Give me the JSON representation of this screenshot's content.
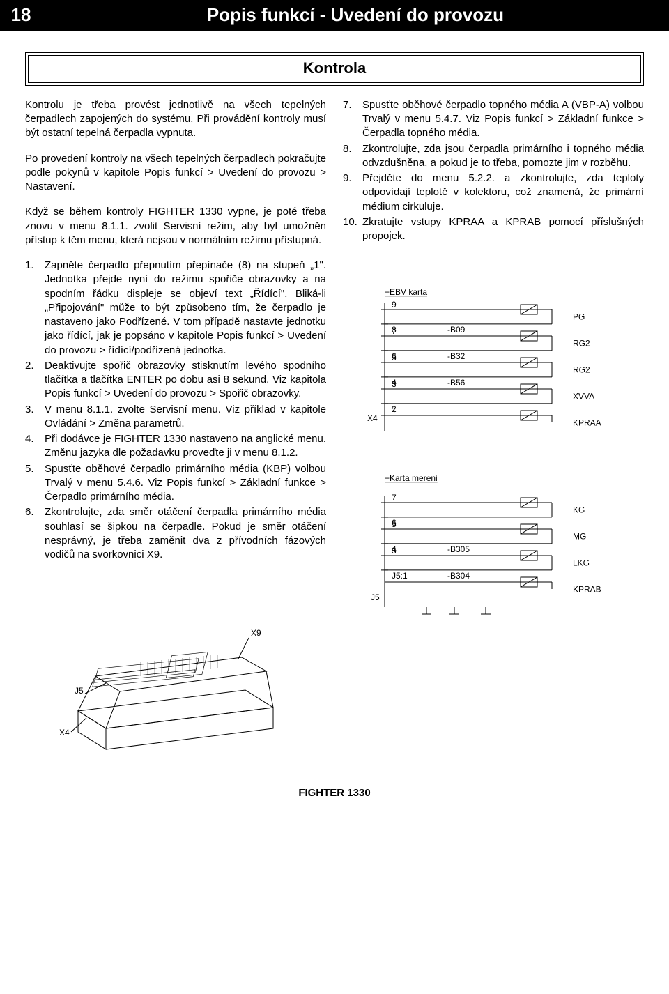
{
  "page_number": "18",
  "page_title": "Popis funkcí - Uvedení do provozu",
  "section_title": "Kontrola",
  "intro_p1": "Kontrolu je třeba provést jednotlivě na všech tepelných čerpadlech zapojených do systému. Při provádění kontroly musí být ostatní tepelná čerpadla vypnuta.",
  "intro_p2": "Po provedení kontroly na všech tepelných čerpadlech pokračujte podle pokynů v kapitole Popis funkcí > Uvedení do provozu > Nastavení.",
  "intro_p3": "Když se během kontroly FIGHTER 1330 vypne, je poté třeba znovu v menu 8.1.1. zvolit Servisní režim, aby byl umožněn přístup k těm menu, která nejsou v normálním režimu přístupná.",
  "left_list": [
    {
      "n": "1.",
      "t": "Zapněte čerpadlo přepnutím přepínače (8) na stupeň „1\". Jednotka přejde nyní do režimu spořiče obrazovky a na spodním řádku displeje se objeví text „Řídící\". Bliká-li „Připojování\" může to být způsobeno tím, že čerpadlo je nastaveno jako Podřízené. V tom případě nastavte jednotku jako řídící, jak je popsáno v kapitole Popis funkcí > Uvedení do provozu > řídící/podřízená jednotka."
    },
    {
      "n": "2.",
      "t": "Deaktivujte spořič obrazovky stisknutím levého spodního tlačítka a tlačítka ENTER po dobu asi 8 sekund. Viz kapitola Popis funkcí > Uvedení do provozu > Spořič obrazovky."
    },
    {
      "n": "3.",
      "t": "V menu 8.1.1. zvolte Servisní menu. Viz příklad v kapitole Ovládání > Změna parametrů."
    },
    {
      "n": "4.",
      "t": "Při dodávce je FIGHTER 1330 nastaveno na anglické menu. Změnu jazyka dle požadavku proveďte ji v menu 8.1.2."
    },
    {
      "n": "5.",
      "t": "Spusťte oběhové čerpadlo primárního média (KBP) volbou Trvalý v menu 5.4.6. Viz Popis funkcí > Základní funkce > Čerpadlo primárního média."
    },
    {
      "n": "6.",
      "t": "Zkontrolujte, zda směr otáčení čerpadla primárního média souhlasí se šipkou na čerpadle. Pokud je směr otáčení nesprávný, je třeba zaměnit dva z přívodních fázových vodičů na svorkovnici X9."
    }
  ],
  "right_list": [
    {
      "n": "7.",
      "t": "Spusťte oběhové čerpadlo topného média A (VBP-A) volbou Trvalý v menu 5.4.7. Viz Popis funkcí > Základní funkce > Čerpadla topného média."
    },
    {
      "n": "8.",
      "t": "Zkontrolujte, zda jsou čerpadla primárního i topného média odvzdušněna, a pokud je to třeba, pomozte jim v rozběhu."
    },
    {
      "n": "9.",
      "t": "Přejděte do menu 5.2.2. a zkontrolujte, zda teploty odpovídají teplotě v kolektoru, což znamená, že primární médium cirkuluje."
    },
    {
      "n": "10.",
      "t": "Zkratujte vstupy KPRAA a KPRAB pomocí příslušných propojek."
    }
  ],
  "diagram1": {
    "title": "+EBV karta",
    "bus_label": "X4",
    "rows": [
      {
        "top": "9",
        "bot": "8",
        "mid": "-B09",
        "right": "PG"
      },
      {
        "top": "7",
        "bot": "6",
        "mid": "-B32",
        "right": "RG2"
      },
      {
        "top": "5",
        "bot": "4",
        "mid": "-B56",
        "right": "RG2"
      },
      {
        "top": "3",
        "bot": "2",
        "mid": "",
        "right": "XVVA"
      },
      {
        "top": "1",
        "bot": "",
        "mid": "",
        "right": "KPRAA"
      }
    ]
  },
  "diagram2": {
    "title": "+Karta mereni",
    "bus_label": "J5",
    "rows": [
      {
        "top": "7",
        "bot": "6",
        "mid": "",
        "right": "KG"
      },
      {
        "top": "5",
        "bot": "4",
        "mid": "-B305",
        "right": "MG"
      },
      {
        "top": "3",
        "bot": "J5:1",
        "mid": "-B304",
        "right": "LKG"
      },
      {
        "top": "",
        "bot": "",
        "mid": "",
        "right": "KPRAB"
      }
    ]
  },
  "iso_labels": {
    "a": "X9",
    "b": "J5",
    "c": "X4"
  },
  "footer": "FIGHTER 1330"
}
